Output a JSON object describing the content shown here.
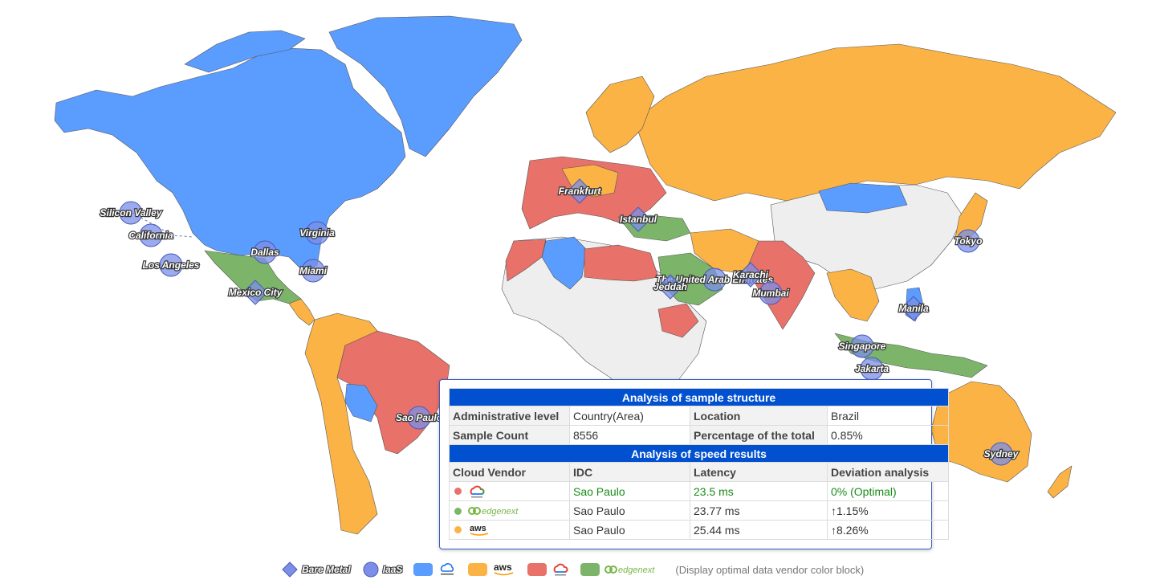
{
  "colors": {
    "azure": "#5b9cff",
    "aws": "#fcb346",
    "google": "#e8716a",
    "edgenext": "#7cb56a",
    "none": "#eeeeee",
    "marker": "#7b8fe8"
  },
  "map": {
    "regions": [
      {
        "name": "North America",
        "vendor": "azure"
      },
      {
        "name": "Greenland",
        "vendor": "azure"
      },
      {
        "name": "Mexico",
        "vendor": "edgenext"
      },
      {
        "name": "South America west",
        "vendor": "aws"
      },
      {
        "name": "Brazil",
        "vendor": "google"
      },
      {
        "name": "Bolivia",
        "vendor": "azure"
      },
      {
        "name": "Russia",
        "vendor": "aws"
      },
      {
        "name": "China",
        "vendor": "none"
      },
      {
        "name": "India",
        "vendor": "google"
      },
      {
        "name": "Australia",
        "vendor": "aws"
      },
      {
        "name": "Africa",
        "vendor": "none"
      },
      {
        "name": "Algeria",
        "vendor": "azure"
      },
      {
        "name": "Saudi Arabia",
        "vendor": "edgenext"
      },
      {
        "name": "Indonesia",
        "vendor": "edgenext"
      }
    ],
    "cities": [
      {
        "name": "Silicon Valley",
        "type": "iaas"
      },
      {
        "name": "California",
        "type": "iaas"
      },
      {
        "name": "Los Angeles",
        "type": "iaas"
      },
      {
        "name": "Dallas",
        "type": "iaas"
      },
      {
        "name": "Virginia",
        "type": "iaas"
      },
      {
        "name": "Miami",
        "type": "iaas"
      },
      {
        "name": "Mexico City",
        "type": "bare"
      },
      {
        "name": "Sao Paulo",
        "type": "iaas"
      },
      {
        "name": "Frankfurt",
        "type": "bare"
      },
      {
        "name": "Istanbul",
        "type": "bare"
      },
      {
        "name": "The United Arab Emirates",
        "type": "iaas"
      },
      {
        "name": "Jeddah",
        "type": "bare"
      },
      {
        "name": "Karachi",
        "type": "bare"
      },
      {
        "name": "Mumbai",
        "type": "iaas"
      },
      {
        "name": "Tokyo",
        "type": "iaas"
      },
      {
        "name": "Manila",
        "type": "bare"
      },
      {
        "name": "Singapore",
        "type": "iaas"
      },
      {
        "name": "Jakarta",
        "type": "iaas"
      },
      {
        "name": "Sydney",
        "type": "iaas"
      }
    ]
  },
  "tooltip": {
    "structure_title": "Analysis of sample structure",
    "admin_level_label": "Administrative level",
    "admin_level_value": "Country(Area)",
    "location_label": "Location",
    "location_value": "Brazil",
    "sample_count_label": "Sample Count",
    "sample_count_value": "8556",
    "percentage_label": "Percentage of the total",
    "percentage_value": "0.85%",
    "speed_title": "Analysis of speed results",
    "col_vendor": "Cloud Vendor",
    "col_idc": "IDC",
    "col_latency": "Latency",
    "col_deviation": "Deviation analysis",
    "rows": [
      {
        "vendor_icon": "google-cloud-logo",
        "color": "#e8716a",
        "idc": "Sao Paulo",
        "latency": "23.5 ms",
        "deviation": "0%  (Optimal)",
        "optimal": true
      },
      {
        "vendor_icon": "edgenext-logo",
        "color": "#7cb56a",
        "idc": "Sao Paulo",
        "latency": "23.77 ms",
        "deviation": "↑1.15%",
        "optimal": false
      },
      {
        "vendor_icon": "aws-logo",
        "color": "#fcb346",
        "idc": "Sao Paulo",
        "latency": "25.44 ms",
        "deviation": "↑8.26%",
        "optimal": false
      }
    ]
  },
  "legend": {
    "bare_metal": "Bare Metal",
    "iaas": "IaaS",
    "aws_text": "aws",
    "edgenext_text": "edgenext",
    "note": "(Display optimal data vendor color block)"
  }
}
